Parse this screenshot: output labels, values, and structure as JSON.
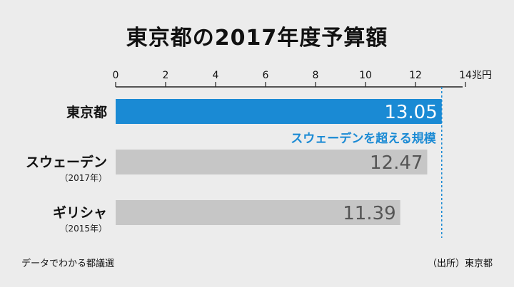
{
  "chart_data": {
    "type": "bar",
    "title": "東京都の2017年度予算額",
    "unit": "兆円",
    "xlim": [
      0,
      14
    ],
    "ticks": [
      0,
      2,
      4,
      6,
      8,
      10,
      12,
      14
    ],
    "categories": [
      {
        "name": "東京都",
        "sub": ""
      },
      {
        "name": "スウェーデン",
        "sub": "（2017年）"
      },
      {
        "name": "ギリシャ",
        "sub": "（2015年）"
      }
    ],
    "values": [
      13.05,
      12.47,
      11.39
    ],
    "value_labels": [
      "13.05",
      "12.47",
      "11.39"
    ],
    "colors": {
      "highlight": "#1a8ad4",
      "other": "#c6c6c6",
      "other_text": "#555555"
    },
    "reference_line_value": 13.05,
    "annotation": "スウェーデンを超える規模"
  },
  "footer": {
    "left": "データでわかる都議選",
    "right": "（出所）東京都"
  }
}
